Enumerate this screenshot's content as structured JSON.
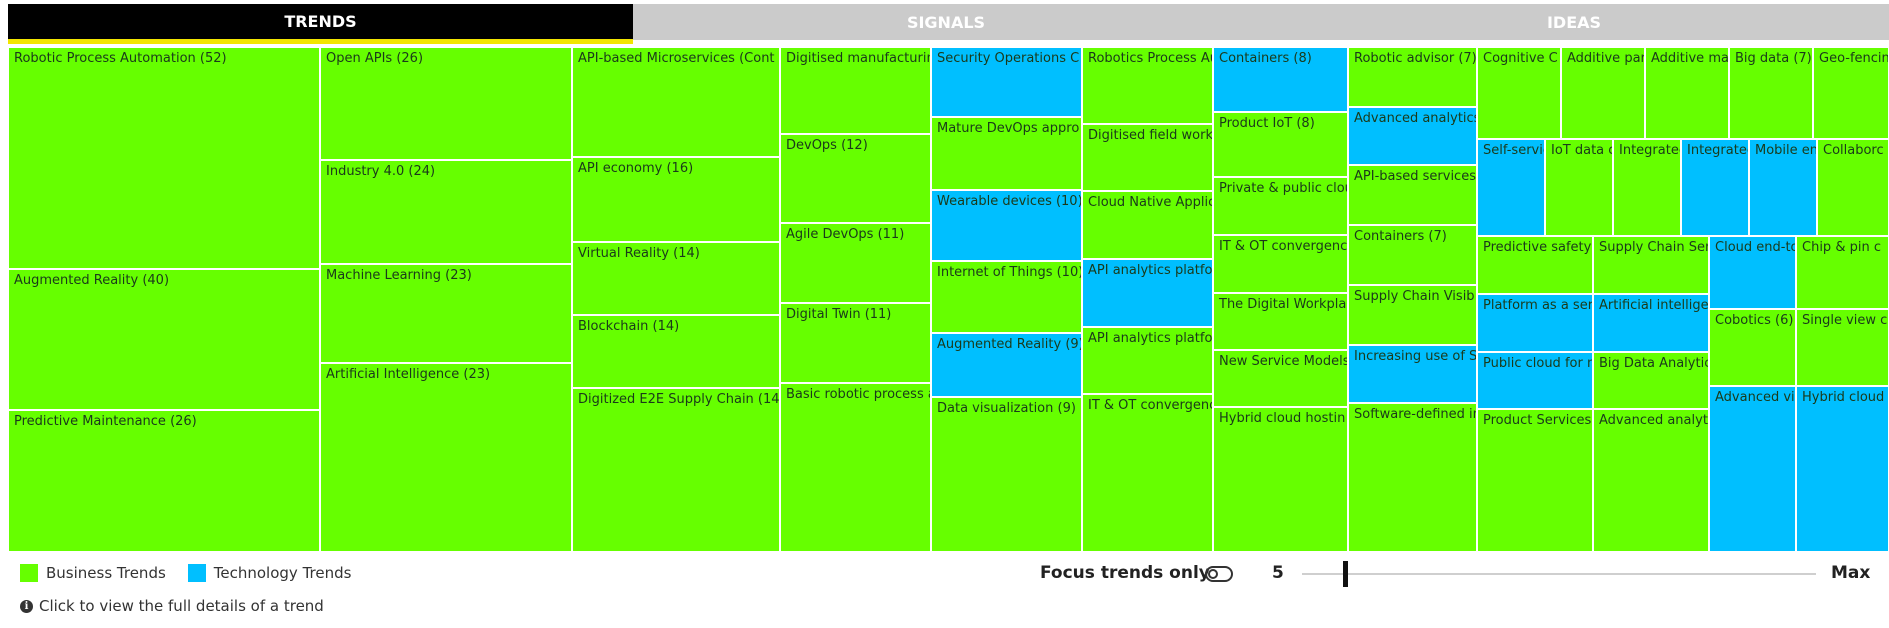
{
  "tabs": [
    {
      "label": "TRENDS",
      "active": true
    },
    {
      "label": "SIGNALS",
      "active": false
    },
    {
      "label": "IDEAS",
      "active": false
    }
  ],
  "colors": {
    "business": "#66ff00",
    "technology": "#00bfff"
  },
  "cells": [
    {
      "label": "Robotic Process Automation (52)",
      "type": "business"
    },
    {
      "label": "Augmented Reality (40)",
      "type": "business"
    },
    {
      "label": "Predictive Maintenance (26)",
      "type": "business"
    },
    {
      "label": "Open APIs (26)",
      "type": "business"
    },
    {
      "label": "Industry 4.0 (24)",
      "type": "business"
    },
    {
      "label": "Machine Learning (23)",
      "type": "business"
    },
    {
      "label": "Artificial Intelligence (23)",
      "type": "business"
    },
    {
      "label": "API-based Microservices (Cont",
      "type": "business"
    },
    {
      "label": "API economy (16)",
      "type": "business"
    },
    {
      "label": "Virtual Reality (14)",
      "type": "business"
    },
    {
      "label": "Blockchain (14)",
      "type": "business"
    },
    {
      "label": "Digitized E2E Supply Chain (14)",
      "type": "business"
    },
    {
      "label": "Digitised manufacturin",
      "type": "business"
    },
    {
      "label": "DevOps (12)",
      "type": "business"
    },
    {
      "label": "Agile DevOps (11)",
      "type": "business"
    },
    {
      "label": "Digital Twin (11)",
      "type": "business"
    },
    {
      "label": "Basic robotic process a",
      "type": "business"
    },
    {
      "label": "Security Operations C",
      "type": "technology"
    },
    {
      "label": "Mature DevOps appro",
      "type": "business"
    },
    {
      "label": "Wearable devices (10)",
      "type": "technology"
    },
    {
      "label": "Internet of Things (10)",
      "type": "business"
    },
    {
      "label": "Augmented Reality (9)",
      "type": "technology"
    },
    {
      "label": "Data visualization (9)",
      "type": "business"
    },
    {
      "label": "Robotics Process Au",
      "type": "business"
    },
    {
      "label": "Digitised field work",
      "type": "business"
    },
    {
      "label": "Cloud Native Applic",
      "type": "business"
    },
    {
      "label": "API analytics platfo",
      "type": "technology"
    },
    {
      "label": "API analytics platfo",
      "type": "business"
    },
    {
      "label": "IT & OT convergenc",
      "type": "business"
    },
    {
      "label": "Containers (8)",
      "type": "technology"
    },
    {
      "label": "Product IoT (8)",
      "type": "business"
    },
    {
      "label": "Private & public clou",
      "type": "business"
    },
    {
      "label": "IT & OT convergence",
      "type": "business"
    },
    {
      "label": "The Digital Workpla",
      "type": "business"
    },
    {
      "label": "New Service Models",
      "type": "business"
    },
    {
      "label": "Hybrid cloud hostin",
      "type": "business"
    },
    {
      "label": "Robotic advisor (7)",
      "type": "business"
    },
    {
      "label": "Advanced analytics",
      "type": "technology"
    },
    {
      "label": "API-based services",
      "type": "business"
    },
    {
      "label": "Containers (7)",
      "type": "business"
    },
    {
      "label": "Supply Chain Visib",
      "type": "business"
    },
    {
      "label": "Increasing use of S",
      "type": "technology"
    },
    {
      "label": "Software-defined in",
      "type": "business"
    },
    {
      "label": "Cognitive C",
      "type": "business"
    },
    {
      "label": "Additive par",
      "type": "business"
    },
    {
      "label": "Additive ma",
      "type": "business"
    },
    {
      "label": "Big data (7)",
      "type": "business"
    },
    {
      "label": "Geo-fencin",
      "type": "business"
    },
    {
      "label": "Self-servic",
      "type": "technology"
    },
    {
      "label": "IoT data c",
      "type": "business"
    },
    {
      "label": "Integratec",
      "type": "business"
    },
    {
      "label": "Integratec",
      "type": "technology"
    },
    {
      "label": "Mobile en",
      "type": "technology"
    },
    {
      "label": "Collaborc",
      "type": "business"
    },
    {
      "label": "Predictive safety",
      "type": "business"
    },
    {
      "label": "Supply Chain Ser",
      "type": "business"
    },
    {
      "label": "Platform as a ser",
      "type": "technology"
    },
    {
      "label": "Artificial intellige",
      "type": "technology"
    },
    {
      "label": "Public cloud for n",
      "type": "technology"
    },
    {
      "label": "Big Data Analytic",
      "type": "business"
    },
    {
      "label": "Product Services",
      "type": "business"
    },
    {
      "label": "Advanced analyt",
      "type": "business"
    },
    {
      "label": "Cloud end-to",
      "type": "technology"
    },
    {
      "label": "Chip & pin c",
      "type": "business"
    },
    {
      "label": "Cobotics (6)",
      "type": "business"
    },
    {
      "label": "Single view c",
      "type": "business"
    },
    {
      "label": "Advanced vis",
      "type": "technology"
    },
    {
      "label": "Hybrid cloud",
      "type": "technology"
    }
  ],
  "legend": {
    "business_label": "Business Trends",
    "technology_label": "Technology Trends"
  },
  "hint": "Click to view the full details of a trend",
  "focus_label": "Focus trends only",
  "slider": {
    "min_label": "5",
    "max_label": "Max",
    "value_fraction": 0.08
  }
}
